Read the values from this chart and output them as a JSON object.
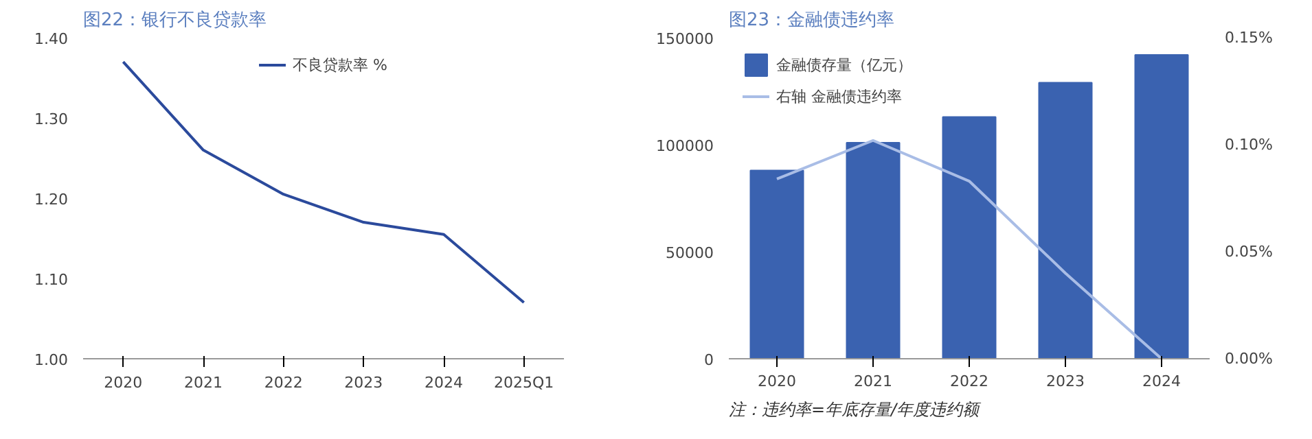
{
  "chart_data": [
    {
      "type": "line",
      "title": "图22：银行不良贷款率",
      "categories": [
        "2020",
        "2021",
        "2022",
        "2023",
        "2024",
        "2025Q1"
      ],
      "series": [
        {
          "name": "不良贷款率 %",
          "color": "#2b4a9c",
          "values": [
            1.37,
            1.26,
            1.205,
            1.17,
            1.155,
            1.07
          ]
        }
      ],
      "ylim": [
        1.0,
        1.4
      ],
      "yticks": [
        {
          "value": 1.0,
          "label": "1.00"
        },
        {
          "value": 1.1,
          "label": "1.10"
        },
        {
          "value": 1.2,
          "label": "1.20"
        },
        {
          "value": 1.3,
          "label": "1.30"
        },
        {
          "value": 1.4,
          "label": "1.40"
        }
      ],
      "legend": "top",
      "grid": false
    },
    {
      "type": "bar",
      "title": "图23：金融债违约率",
      "categories": [
        "2020",
        "2021",
        "2022",
        "2023",
        "2024"
      ],
      "series": [
        {
          "name": "金融债存量（亿元）",
          "color": "#3a62b0",
          "values": [
            88000,
            101000,
            113000,
            129000,
            142000
          ]
        },
        {
          "name": "右轴 金融债违约率",
          "type": "line",
          "axis": "y2",
          "color": "#a9bde6",
          "values": [
            0.084,
            0.102,
            0.083,
            0.04,
            0.0
          ]
        }
      ],
      "ylim": [
        0,
        150000
      ],
      "yticks": [
        0,
        50000,
        100000,
        150000
      ],
      "y2lim": [
        0,
        0.15
      ],
      "y2ticks": [
        {
          "value": 0,
          "label": "0.00%"
        },
        {
          "value": 0.05,
          "label": "0.05%"
        },
        {
          "value": 0.1,
          "label": "0.10%"
        },
        {
          "value": 0.15,
          "label": "0.15%"
        }
      ],
      "legend": "top left",
      "grid": false,
      "annotations": [
        "注：违约率=年底存量/年度违约额"
      ]
    }
  ]
}
